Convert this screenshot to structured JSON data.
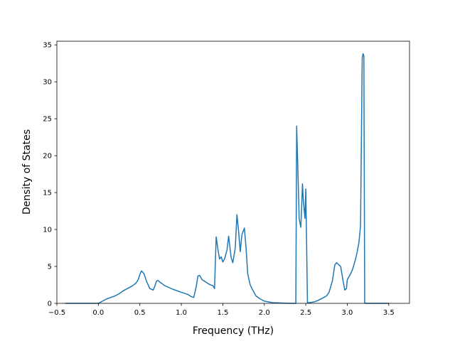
{
  "chart_data": {
    "type": "line",
    "title": "",
    "xlabel": "Frequency (THz)",
    "ylabel": "Density of States",
    "xlim": [
      -0.5,
      3.75
    ],
    "ylim": [
      0,
      35.5
    ],
    "xticks": [
      -0.5,
      0.0,
      0.5,
      1.0,
      1.5,
      2.0,
      2.5,
      3.0,
      3.5
    ],
    "xtick_labels": [
      "−0.5",
      "0.0",
      "0.5",
      "1.0",
      "1.5",
      "2.0",
      "2.5",
      "3.0",
      "3.5"
    ],
    "yticks": [
      0,
      5,
      10,
      15,
      20,
      25,
      30,
      35
    ],
    "ytick_labels": [
      "0",
      "5",
      "10",
      "15",
      "20",
      "25",
      "30",
      "35"
    ],
    "grid": false,
    "legend": null,
    "series": [
      {
        "color": "#1f77b4",
        "x": [
          -0.4,
          0.0,
          0.05,
          0.1,
          0.15,
          0.2,
          0.25,
          0.3,
          0.35,
          0.4,
          0.45,
          0.48,
          0.5,
          0.52,
          0.55,
          0.58,
          0.62,
          0.66,
          0.68,
          0.7,
          0.72,
          0.75,
          0.8,
          0.9,
          1.0,
          1.08,
          1.12,
          1.15,
          1.18,
          1.2,
          1.22,
          1.25,
          1.28,
          1.32,
          1.35,
          1.38,
          1.4,
          1.42,
          1.44,
          1.46,
          1.48,
          1.5,
          1.52,
          1.55,
          1.57,
          1.6,
          1.62,
          1.65,
          1.67,
          1.69,
          1.71,
          1.73,
          1.76,
          1.78,
          1.8,
          1.83,
          1.86,
          1.9,
          1.95,
          2.0,
          2.1,
          2.2,
          2.3,
          2.38,
          2.39,
          2.4,
          2.42,
          2.44,
          2.45,
          2.46,
          2.47,
          2.49,
          2.5,
          2.51,
          2.52,
          2.53,
          2.55,
          2.6,
          2.65,
          2.7,
          2.75,
          2.78,
          2.82,
          2.85,
          2.87,
          2.89,
          2.92,
          2.95,
          2.97,
          2.99,
          3.0,
          3.02,
          3.04,
          3.06,
          3.08,
          3.1,
          3.12,
          3.14,
          3.16,
          3.18,
          3.19,
          3.2,
          3.21,
          3.22,
          3.5
        ],
        "y": [
          0.0,
          0.0,
          0.3,
          0.6,
          0.8,
          1.0,
          1.3,
          1.7,
          2.0,
          2.3,
          2.7,
          3.2,
          3.9,
          4.4,
          4.0,
          3.0,
          2.0,
          1.8,
          2.3,
          3.0,
          3.1,
          2.8,
          2.4,
          1.9,
          1.5,
          1.2,
          0.9,
          0.8,
          2.3,
          3.7,
          3.8,
          3.2,
          3.0,
          2.7,
          2.5,
          2.4,
          2.0,
          9.0,
          7.4,
          6.0,
          6.3,
          5.6,
          6.0,
          7.2,
          9.1,
          6.2,
          5.5,
          7.5,
          12.0,
          9.8,
          7.0,
          9.3,
          10.2,
          7.5,
          4.0,
          2.5,
          1.8,
          1.0,
          0.6,
          0.3,
          0.1,
          0.05,
          0.0,
          0.0,
          24.0,
          20.0,
          11.5,
          10.3,
          13.0,
          16.2,
          14.0,
          11.5,
          15.5,
          8.0,
          0.1,
          0.1,
          0.1,
          0.2,
          0.4,
          0.7,
          1.0,
          1.5,
          3.0,
          5.2,
          5.5,
          5.3,
          5.0,
          3.0,
          1.8,
          2.0,
          3.2,
          3.6,
          4.0,
          4.5,
          5.2,
          6.0,
          7.0,
          8.2,
          10.5,
          33.2,
          33.8,
          33.5,
          0.05,
          0.0,
          0.0
        ]
      }
    ]
  }
}
